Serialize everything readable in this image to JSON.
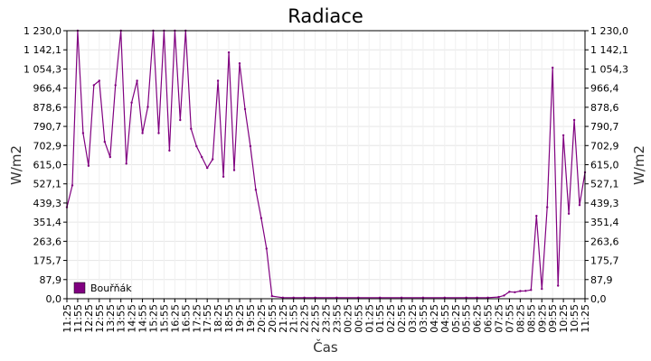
{
  "chart_data": {
    "type": "line",
    "title": "Radiace",
    "xlabel": "Čas",
    "ylabel_left": "W/m2",
    "ylabel_right": "W/m2",
    "ylim": [
      0,
      1230
    ],
    "y_ticks": [
      "0,0",
      "87,9",
      "175,7",
      "263,6",
      "351,4",
      "439,3",
      "527,1",
      "615,0",
      "702,9",
      "790,7",
      "878,6",
      "966,4",
      "1 054,3",
      "1 142,1",
      "1 230,0"
    ],
    "x_ticks": [
      "11:25",
      "11:55",
      "12:25",
      "12:55",
      "13:25",
      "13:55",
      "14:25",
      "14:55",
      "15:25",
      "15:55",
      "16:25",
      "16:55",
      "17:25",
      "17:55",
      "18:25",
      "18:55",
      "19:25",
      "19:55",
      "20:25",
      "20:55",
      "21:25",
      "21:55",
      "22:25",
      "22:55",
      "23:25",
      "23:55",
      "00:25",
      "00:55",
      "01:25",
      "01:55",
      "02:25",
      "02:55",
      "03:25",
      "03:55",
      "04:25",
      "04:55",
      "05:25",
      "05:55",
      "06:25",
      "06:55",
      "07:25",
      "07:55",
      "08:25",
      "08:55",
      "09:25",
      "09:55",
      "10:25",
      "10:55",
      "11:25"
    ],
    "grid": true,
    "legend_position": "bottom-left",
    "series": [
      {
        "name": "Bouřňák",
        "color": "#800080",
        "x": [
          "11:25",
          "11:40",
          "11:55",
          "12:10",
          "12:25",
          "12:40",
          "12:55",
          "13:10",
          "13:25",
          "13:40",
          "13:55",
          "14:10",
          "14:25",
          "14:40",
          "14:55",
          "15:10",
          "15:25",
          "15:40",
          "15:55",
          "16:10",
          "16:25",
          "16:40",
          "16:55",
          "17:10",
          "17:25",
          "17:40",
          "17:55",
          "18:10",
          "18:25",
          "18:40",
          "18:55",
          "19:10",
          "19:25",
          "19:40",
          "19:55",
          "20:10",
          "20:25",
          "20:40",
          "20:55",
          "21:25",
          "21:55",
          "22:25",
          "22:55",
          "23:55",
          "00:55",
          "01:55",
          "02:55",
          "03:55",
          "04:55",
          "05:55",
          "06:25",
          "06:55",
          "07:25",
          "07:40",
          "07:55",
          "08:10",
          "08:25",
          "08:40",
          "08:55",
          "09:10",
          "09:25",
          "09:40",
          "09:55",
          "10:10",
          "10:25",
          "10:40",
          "10:55",
          "11:10",
          "11:25"
        ],
        "values": [
          420,
          520,
          1230,
          760,
          610,
          980,
          1000,
          720,
          650,
          980,
          1230,
          620,
          900,
          1000,
          760,
          880,
          1230,
          760,
          1230,
          680,
          1230,
          820,
          1230,
          780,
          700,
          650,
          600,
          640,
          1000,
          560,
          1130,
          590,
          1080,
          870,
          700,
          500,
          370,
          230,
          12,
          5,
          5,
          5,
          5,
          5,
          5,
          5,
          5,
          5,
          5,
          5,
          5,
          5,
          8,
          15,
          32,
          30,
          35,
          36,
          40,
          380,
          45,
          420,
          1060,
          60,
          750,
          390,
          820,
          430,
          580
        ]
      }
    ]
  }
}
